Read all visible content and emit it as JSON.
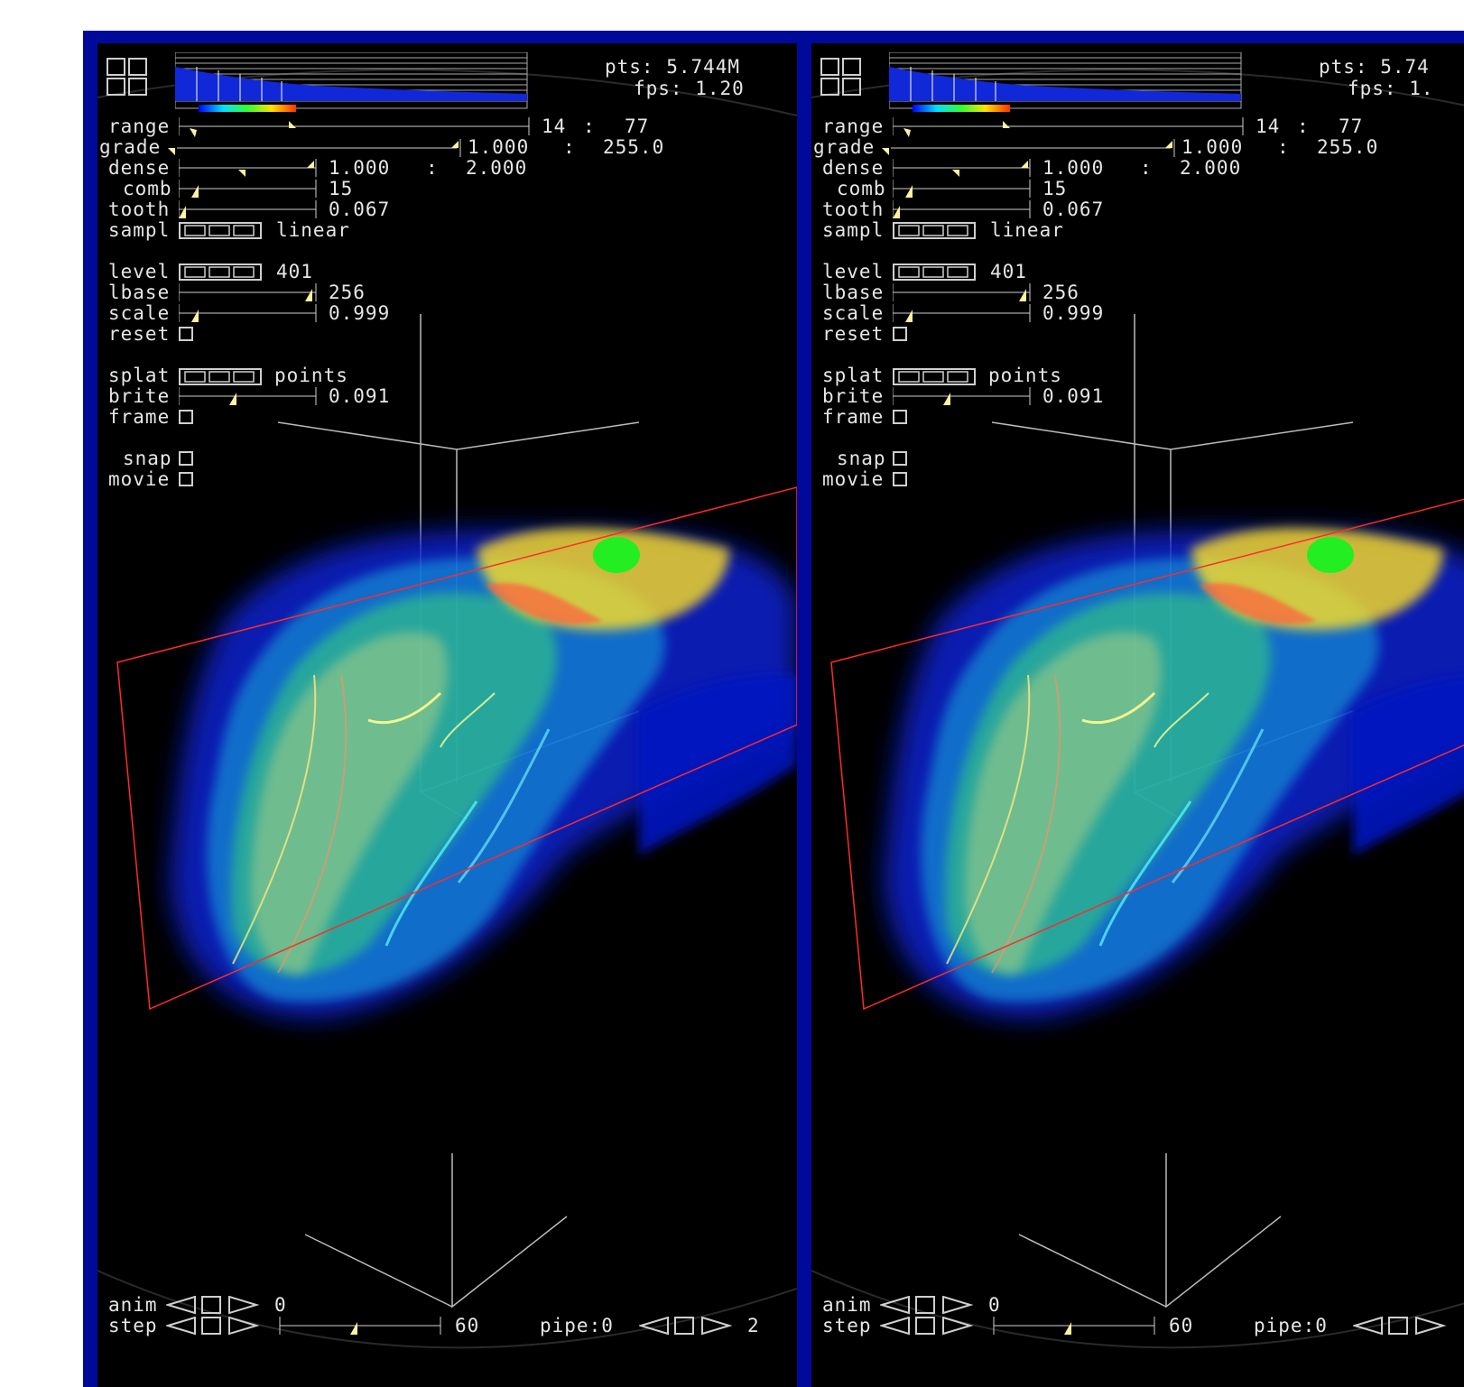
{
  "panels": [
    {
      "id": "left",
      "stats": {
        "pts": "pts: 5.744M",
        "fps": "fps: 1.20"
      },
      "range": {
        "label": "range",
        "min": "14",
        "sep": ":",
        "max": "77"
      },
      "grade": {
        "label": "grade",
        "min": "1.000",
        "sep": ":",
        "max": "255.0"
      },
      "dense": {
        "label": "dense",
        "min": "1.000",
        "sep": ":",
        "max": "2.000"
      },
      "comb": {
        "label": "comb",
        "value": "15"
      },
      "tooth": {
        "label": "tooth",
        "value": "0.067"
      },
      "sampl": {
        "label": "sampl",
        "value": "linear"
      },
      "level": {
        "label": "level",
        "value": "401"
      },
      "lbase": {
        "label": "lbase",
        "value": "256"
      },
      "scale": {
        "label": "scale",
        "value": "0.999"
      },
      "reset": {
        "label": "reset"
      },
      "splat": {
        "label": "splat",
        "value": "points"
      },
      "brite": {
        "label": "brite",
        "value": "0.091"
      },
      "frame": {
        "label": "frame"
      },
      "snap": {
        "label": "snap"
      },
      "movie": {
        "label": "movie"
      },
      "anim": {
        "label": "anim",
        "value": "0"
      },
      "step": {
        "label": "step",
        "value": "60"
      },
      "pipe": {
        "label": "pipe:0",
        "value": "2"
      }
    },
    {
      "id": "right",
      "stats": {
        "pts": "pts: 5.74",
        "fps": "fps: 1."
      },
      "range": {
        "label": "range",
        "min": "14",
        "sep": ":",
        "max": "77"
      },
      "grade": {
        "label": "grade",
        "min": "1.000",
        "sep": ":",
        "max": "255.0"
      },
      "dense": {
        "label": "dense",
        "min": "1.000",
        "sep": ":",
        "max": "2.000"
      },
      "comb": {
        "label": "comb",
        "value": "15"
      },
      "tooth": {
        "label": "tooth",
        "value": "0.067"
      },
      "sampl": {
        "label": "sampl",
        "value": "linear"
      },
      "level": {
        "label": "level",
        "value": "401"
      },
      "lbase": {
        "label": "lbase",
        "value": "256"
      },
      "scale": {
        "label": "scale",
        "value": "0.999"
      },
      "reset": {
        "label": "reset"
      },
      "splat": {
        "label": "splat",
        "value": "points"
      },
      "brite": {
        "label": "brite",
        "value": "0.091"
      },
      "frame": {
        "label": "frame"
      },
      "snap": {
        "label": "snap"
      },
      "movie": {
        "label": "movie"
      },
      "anim": {
        "label": "anim",
        "value": "0"
      },
      "step": {
        "label": "step",
        "value": "60"
      },
      "pipe": {
        "label": "pipe:0",
        "value": ""
      }
    }
  ],
  "colors": {
    "frame_border": "#000a9a",
    "background": "#000000",
    "text": "#e6e6e6",
    "slider_marker": "#fff2a0",
    "bounding_box": "#ff2a2a",
    "guide_lines": "#bbbbbb"
  },
  "icons": [
    "layout-grid-icon",
    "histogram-icon",
    "colormap-bar",
    "slider-marker-icon",
    "checkbox-icon",
    "step-back-arrow-icon",
    "step-forward-arrow-icon"
  ]
}
